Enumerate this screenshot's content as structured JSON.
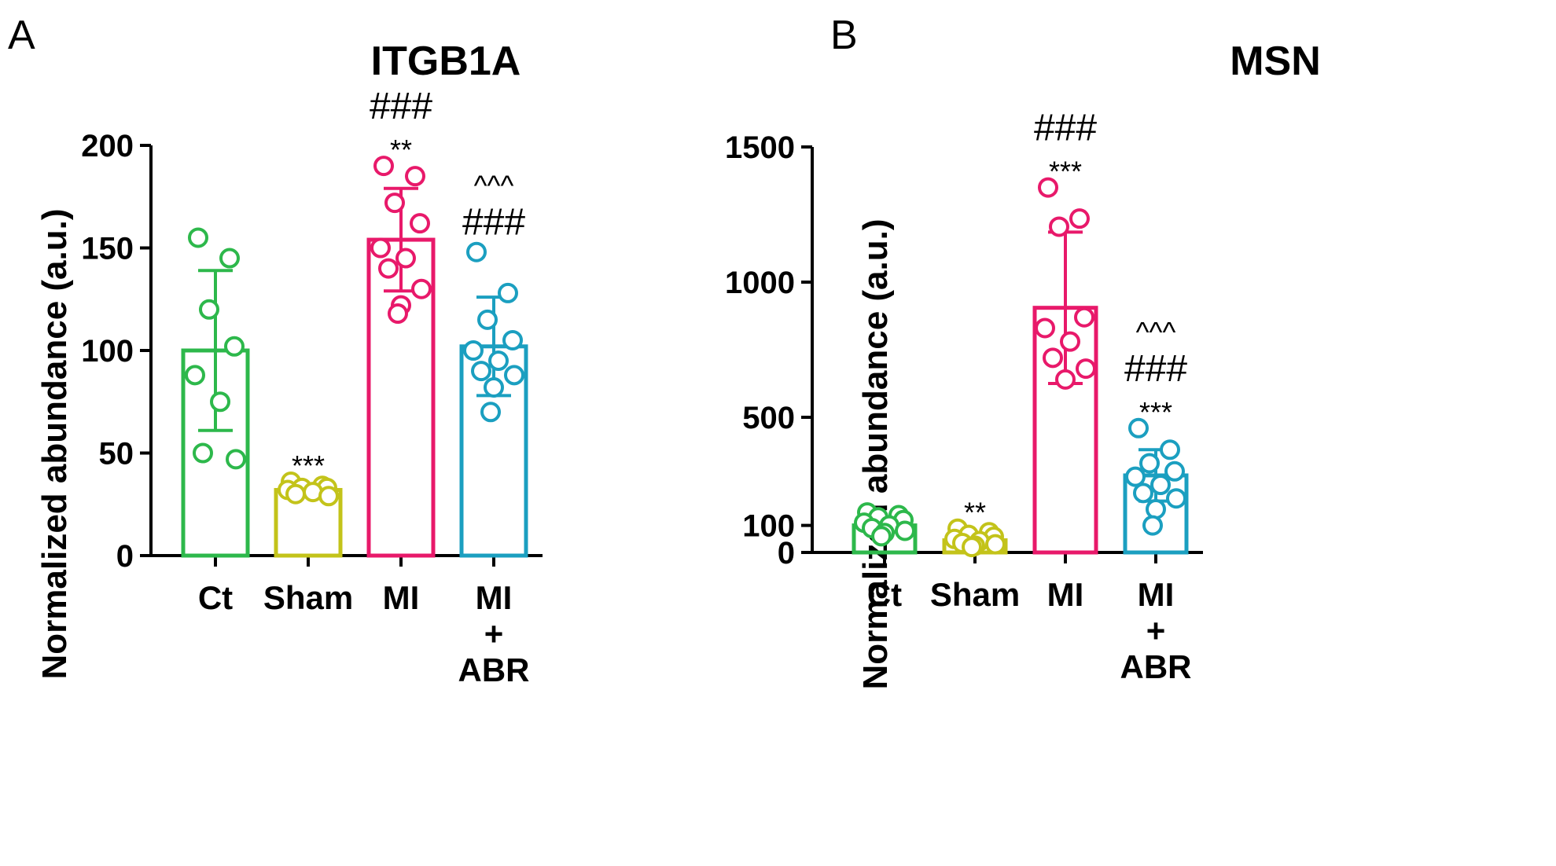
{
  "figure": {
    "colors": {
      "Ct": "#2db84b",
      "Sham": "#c3c31a",
      "MI": "#e8196a",
      "MI + ABR": "#1b9fc0",
      "axis": "#000000"
    }
  },
  "chart_data": [
    {
      "panel_label": "A",
      "type": "bar",
      "title": "ITGB1A",
      "ylabel": "Normalized abundance (a.u.)",
      "xlabel": "",
      "ylim": [
        0,
        200
      ],
      "yticks": [
        0,
        50,
        100,
        150,
        200
      ],
      "ytick_labels": [
        "0",
        "50",
        "100",
        "150",
        "200"
      ],
      "categories": [
        "Ct",
        "Sham",
        "MI",
        "MI + ABR"
      ],
      "category_labels": [
        [
          "Ct"
        ],
        [
          "Sham"
        ],
        [
          "MI"
        ],
        [
          "MI",
          "+",
          "ABR"
        ]
      ],
      "values": [
        100,
        32,
        154,
        102
      ],
      "sd": [
        39,
        2,
        25,
        24
      ],
      "points": [
        [
          155,
          145,
          120,
          102,
          88,
          75,
          50,
          47
        ],
        [
          36,
          34,
          33,
          33,
          32,
          31,
          30,
          29
        ],
        [
          190,
          185,
          172,
          162,
          150,
          145,
          140,
          130,
          122,
          118
        ],
        [
          148,
          128,
          115,
          105,
          100,
          95,
          90,
          88,
          82,
          70
        ]
      ],
      "annotations": [
        [],
        [
          "***"
        ],
        [
          "###",
          "**"
        ],
        [
          "^^^",
          "###"
        ]
      ]
    },
    {
      "panel_label": "B",
      "type": "bar",
      "title": "MSN",
      "ylabel": "Normalized abundance (a.u.)",
      "xlabel": "",
      "ylim": [
        0,
        1500
      ],
      "yticks": [
        0,
        100,
        500,
        1000,
        1500
      ],
      "ytick_labels": [
        "0",
        "100",
        "500",
        "1000",
        "1500"
      ],
      "categories": [
        "Ct",
        "Sham",
        "MI",
        "MI + ABR"
      ],
      "category_labels": [
        [
          "Ct"
        ],
        [
          "Sham"
        ],
        [
          "MI"
        ],
        [
          "MI",
          "+",
          "ABR"
        ]
      ],
      "values": [
        100,
        45,
        905,
        285
      ],
      "sd": [
        20,
        10,
        280,
        95
      ],
      "points": [
        [
          148,
          138,
          130,
          120,
          110,
          100,
          90,
          80,
          72,
          60
        ],
        [
          88,
          75,
          65,
          58,
          50,
          42,
          35,
          30,
          25,
          20
        ],
        [
          1350,
          1235,
          1205,
          870,
          830,
          780,
          720,
          680,
          640
        ],
        [
          460,
          380,
          330,
          300,
          280,
          250,
          220,
          200,
          160,
          100
        ]
      ],
      "annotations": [
        [],
        [
          "**"
        ],
        [
          "###",
          "***"
        ],
        [
          "^^^",
          "###",
          "***"
        ]
      ]
    }
  ]
}
